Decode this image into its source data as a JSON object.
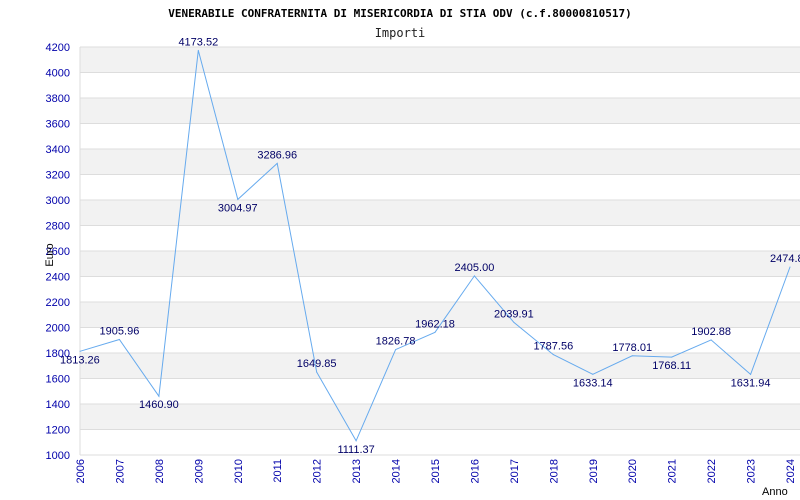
{
  "chart_data": {
    "type": "line",
    "title": "VENERABILE CONFRATERNITA DI MISERICORDIA DI STIA ODV (c.f.80000810517)",
    "subtitle": "Importi",
    "xlabel": "Anno",
    "ylabel": "Euro",
    "ylim": [
      1000,
      4200
    ],
    "ytick_step": 200,
    "grid": true,
    "line_color": "#66aaee",
    "band_color": "#f2f2f2",
    "tick_color": "#0000aa",
    "series": [
      {
        "x": [
          "2006",
          "2007",
          "2008",
          "2009",
          "2010",
          "2011",
          "2012",
          "2013",
          "2014",
          "2015",
          "2016",
          "2017",
          "2018",
          "2019",
          "2020",
          "2021",
          "2022",
          "2023",
          "2024"
        ],
        "values": [
          1813.26,
          1905.96,
          1460.9,
          4173.52,
          3004.97,
          3286.96,
          1649.85,
          1111.37,
          1826.78,
          1962.18,
          2405.0,
          2039.91,
          1787.56,
          1633.14,
          1778.01,
          1768.11,
          1902.88,
          1631.94,
          2474.8
        ],
        "labels": [
          "1813.26",
          "1905.96",
          "1460.90",
          "4173.52",
          "3004.97",
          "3286.96",
          "1649.85",
          "1111.37",
          "1826.78",
          "1962.18",
          "2405.00",
          "2039.91",
          "1787.56",
          "1633.14",
          "1778.01",
          "1768.11",
          "1902.88",
          "1631.94",
          "2474.8"
        ]
      }
    ]
  }
}
